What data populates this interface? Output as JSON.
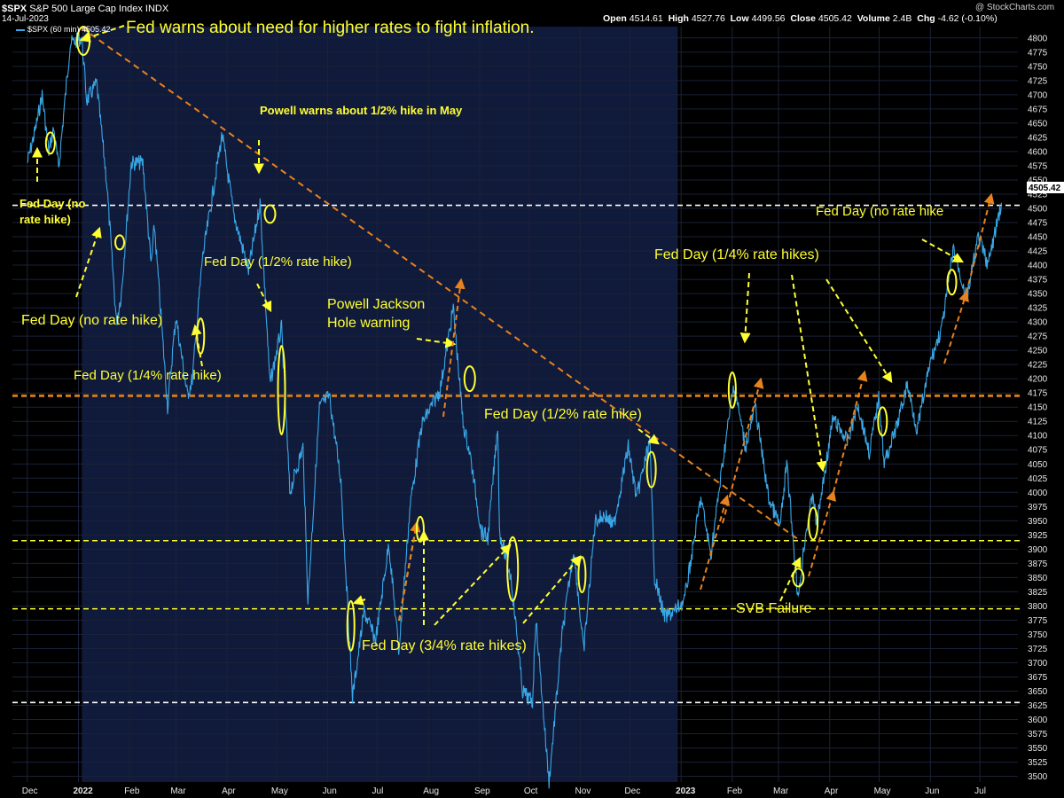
{
  "header": {
    "symbol": "$SPX",
    "name": "S&P 500 Large Cap Index",
    "exchange": "INDX",
    "date": "14-Jul-2023",
    "legend": "$SPX (60 min) 4505.42",
    "watermark": "@ StockCharts.com",
    "open_label": "Open",
    "open": "4514.61",
    "high_label": "High",
    "high": "4527.76",
    "low_label": "Low",
    "low": "4499.56",
    "close_label": "Close",
    "close": "4505.42",
    "volume_label": "Volume",
    "volume": "2.4B",
    "chg_label": "Chg",
    "chg": "-4.62 (-0.10%)"
  },
  "colors": {
    "price": "#3aa8e8",
    "annotation": "#ffff33",
    "trend": "#e8821e",
    "highlight_band": "#101a3a"
  },
  "chart_data": {
    "type": "line",
    "y_axis": {
      "min": 3490,
      "max": 4820,
      "step": 25,
      "side": "right"
    },
    "x_axis_labels": [
      "Dec",
      "2022",
      "Feb",
      "Mar",
      "Apr",
      "May",
      "Jun",
      "Jul",
      "Aug",
      "Sep",
      "Oct",
      "Nov",
      "Dec",
      "2023",
      "Feb",
      "Mar",
      "Apr",
      "May",
      "Jun",
      "Jul"
    ],
    "x_axis_dates": [
      "2021-12-01",
      "2022-01-01",
      "2022-02-01",
      "2022-03-01",
      "2022-04-01",
      "2022-05-01",
      "2022-06-01",
      "2022-07-01",
      "2022-08-01",
      "2022-09-01",
      "2022-10-01",
      "2022-11-01",
      "2022-12-01",
      "2023-01-01",
      "2023-02-01",
      "2023-03-01",
      "2023-04-01",
      "2023-05-01",
      "2023-06-01",
      "2023-07-01"
    ],
    "last_value_label": "4505.42",
    "series": [
      {
        "values_approx": [
          [
            "2021-12-01",
            4580
          ],
          [
            "2021-12-06",
            4640
          ],
          [
            "2021-12-10",
            4700
          ],
          [
            "2021-12-14",
            4600
          ],
          [
            "2021-12-17",
            4640
          ],
          [
            "2021-12-20",
            4570
          ],
          [
            "2021-12-27",
            4790
          ],
          [
            "2022-01-03",
            4800
          ],
          [
            "2022-01-06",
            4690
          ],
          [
            "2022-01-12",
            4720
          ],
          [
            "2022-01-18",
            4550
          ],
          [
            "2022-01-24",
            4300
          ],
          [
            "2022-01-27",
            4350
          ],
          [
            "2022-02-02",
            4580
          ],
          [
            "2022-02-09",
            4580
          ],
          [
            "2022-02-14",
            4400
          ],
          [
            "2022-02-16",
            4470
          ],
          [
            "2022-02-24",
            4150
          ],
          [
            "2022-03-01",
            4310
          ],
          [
            "2022-03-08",
            4170
          ],
          [
            "2022-03-11",
            4200
          ],
          [
            "2022-03-17",
            4410
          ],
          [
            "2022-03-29",
            4630
          ],
          [
            "2022-04-05",
            4490
          ],
          [
            "2022-04-14",
            4390
          ],
          [
            "2022-04-21",
            4510
          ],
          [
            "2022-04-27",
            4190
          ],
          [
            "2022-05-04",
            4290
          ],
          [
            "2022-05-09",
            4000
          ],
          [
            "2022-05-17",
            4080
          ],
          [
            "2022-05-20",
            3810
          ],
          [
            "2022-05-27",
            4150
          ],
          [
            "2022-06-02",
            4170
          ],
          [
            "2022-06-09",
            4020
          ],
          [
            "2022-06-16",
            3640
          ],
          [
            "2022-06-23",
            3790
          ],
          [
            "2022-06-30",
            3740
          ],
          [
            "2022-07-08",
            3910
          ],
          [
            "2022-07-14",
            3720
          ],
          [
            "2022-07-21",
            3980
          ],
          [
            "2022-07-28",
            4120
          ],
          [
            "2022-08-08",
            4180
          ],
          [
            "2022-08-16",
            4325
          ],
          [
            "2022-08-22",
            4120
          ],
          [
            "2022-08-26",
            4070
          ],
          [
            "2022-09-02",
            3930
          ],
          [
            "2022-09-06",
            3920
          ],
          [
            "2022-09-12",
            4120
          ],
          [
            "2022-09-13",
            3930
          ],
          [
            "2022-09-20",
            3850
          ],
          [
            "2022-09-27",
            3650
          ],
          [
            "2022-10-03",
            3630
          ],
          [
            "2022-10-05",
            3780
          ],
          [
            "2022-10-13",
            3490
          ],
          [
            "2022-10-21",
            3750
          ],
          [
            "2022-10-28",
            3900
          ],
          [
            "2022-11-03",
            3720
          ],
          [
            "2022-11-10",
            3950
          ],
          [
            "2022-11-16",
            3960
          ],
          [
            "2022-11-21",
            3940
          ],
          [
            "2022-11-30",
            4080
          ],
          [
            "2022-12-05",
            3990
          ],
          [
            "2022-12-13",
            4090
          ],
          [
            "2022-12-16",
            3850
          ],
          [
            "2022-12-22",
            3780
          ],
          [
            "2022-12-28",
            3790
          ],
          [
            "2023-01-03",
            3810
          ],
          [
            "2023-01-13",
            3990
          ],
          [
            "2023-01-19",
            3890
          ],
          [
            "2023-01-27",
            4070
          ],
          [
            "2023-02-02",
            4190
          ],
          [
            "2023-02-09",
            4080
          ],
          [
            "2023-02-15",
            4150
          ],
          [
            "2023-02-23",
            3990
          ],
          [
            "2023-03-02",
            3940
          ],
          [
            "2023-03-06",
            4050
          ],
          [
            "2023-03-13",
            3810
          ],
          [
            "2023-03-17",
            3920
          ],
          [
            "2023-03-22",
            4000
          ],
          [
            "2023-03-24",
            3940
          ],
          [
            "2023-04-03",
            4130
          ],
          [
            "2023-04-12",
            4090
          ],
          [
            "2023-04-18",
            4155
          ],
          [
            "2023-04-25",
            4070
          ],
          [
            "2023-05-01",
            4170
          ],
          [
            "2023-05-04",
            4050
          ],
          [
            "2023-05-12",
            4120
          ],
          [
            "2023-05-18",
            4190
          ],
          [
            "2023-05-24",
            4110
          ],
          [
            "2023-06-01",
            4230
          ],
          [
            "2023-06-08",
            4290
          ],
          [
            "2023-06-15",
            4430
          ],
          [
            "2023-06-23",
            4340
          ],
          [
            "2023-06-30",
            4450
          ],
          [
            "2023-07-06",
            4400
          ],
          [
            "2023-07-14",
            4510
          ]
        ]
      }
    ],
    "horizontal_lines": [
      {
        "value": 4505.42,
        "style": "dashed",
        "color": "#ffffff"
      },
      {
        "value": 4170,
        "style": "dashed",
        "color": "#d07a1a"
      },
      {
        "value": 3915,
        "style": "dashed",
        "color": "#ffff33"
      },
      {
        "value": 3795,
        "style": "dashed",
        "color": "#ffff33"
      },
      {
        "value": 3630,
        "style": "dashed",
        "color": "#ffffff"
      }
    ],
    "trendline": {
      "from": [
        "2022-01-03",
        4818
      ],
      "to": [
        "2023-03-14",
        3915
      ]
    },
    "annotations": [
      {
        "text": "Fed warns about need for higher rates to fight inflation."
      },
      {
        "text": "Powell warns about 1/2% hike in May"
      },
      {
        "text": "Fed Day (no"
      },
      {
        "text": "rate hike)"
      },
      {
        "text": "Fed Day (1/2% rate hike)"
      },
      {
        "text": "Fed Day (no rate hike)"
      },
      {
        "text": "Fed Day (1/4% rate hike)"
      },
      {
        "text": "Powell Jackson"
      },
      {
        "text": "Hole warning"
      },
      {
        "text": "Fed Day (1/2% rate hike)"
      },
      {
        "text": "Fed Day (3/4% rate hikes)"
      },
      {
        "text": "Fed Day (1/4% rate hikes)"
      },
      {
        "text": "SVB Failure"
      },
      {
        "text": "Fed Day (no rate hike"
      }
    ]
  }
}
